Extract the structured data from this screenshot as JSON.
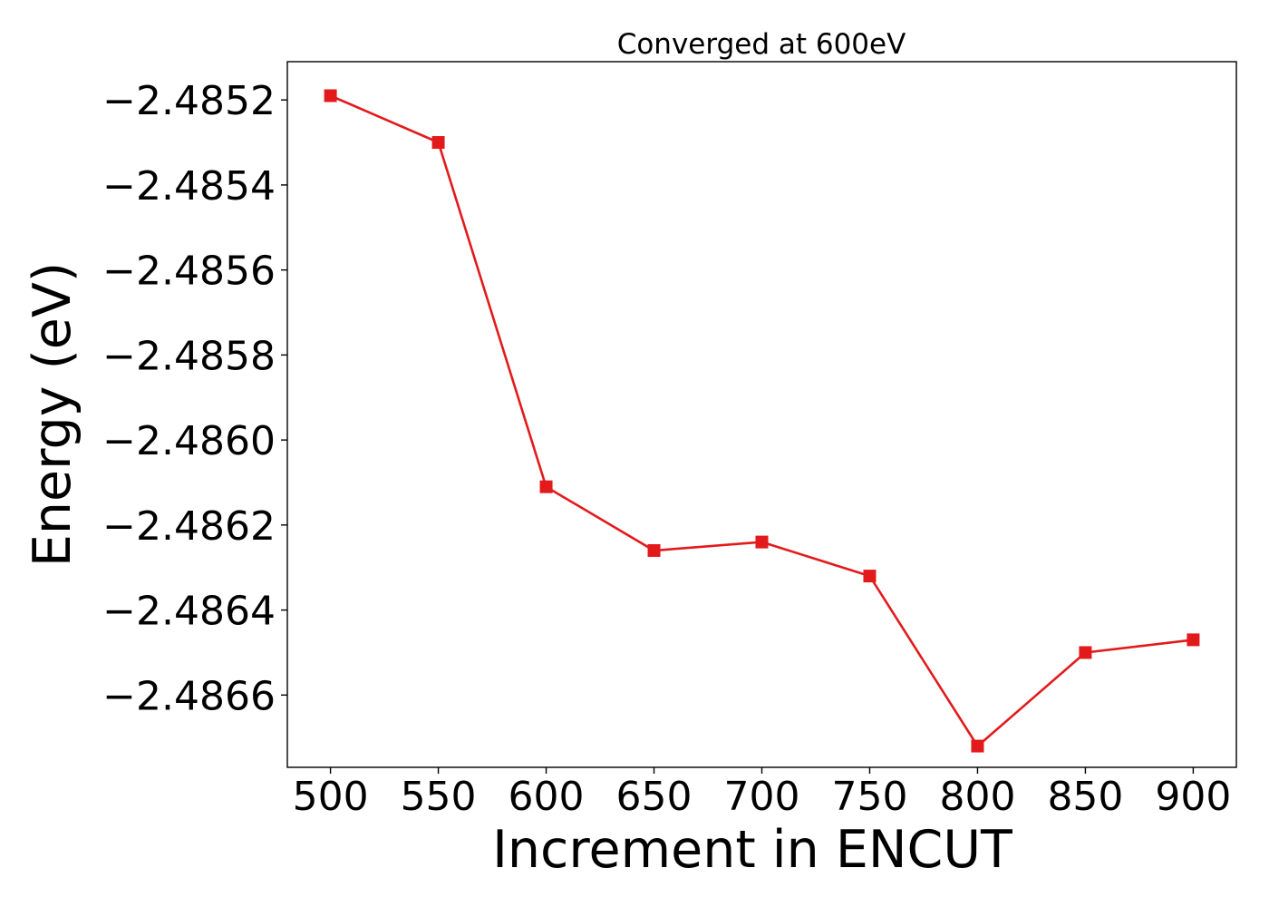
{
  "chart_data": {
    "type": "line",
    "title": "Converged at 600eV",
    "xlabel": "Increment in ENCUT",
    "ylabel": "Energy (eV)",
    "x": [
      500,
      550,
      600,
      650,
      700,
      750,
      800,
      850,
      900
    ],
    "series": [
      {
        "values": [
          -2.48519,
          -2.4853,
          -2.48611,
          -2.48626,
          -2.48624,
          -2.48632,
          -2.48672,
          -2.4865,
          -2.48647
        ],
        "color": "#e31a1c",
        "marker": "square"
      }
    ],
    "xticks": [
      500,
      550,
      600,
      650,
      700,
      750,
      800,
      850,
      900
    ],
    "xtick_labels": [
      "500",
      "550",
      "600",
      "650",
      "700",
      "750",
      "800",
      "850",
      "900"
    ],
    "yticks": [
      -2.4852,
      -2.4854,
      -2.4856,
      -2.4858,
      -2.486,
      -2.4862,
      -2.4864,
      -2.4866
    ],
    "ytick_labels": [
      "−2.4852",
      "−2.4854",
      "−2.4856",
      "−2.4858",
      "−2.4860",
      "−2.4862",
      "−2.4864",
      "−2.4866"
    ],
    "xlim": [
      480,
      920
    ],
    "ylim": [
      -2.48677,
      -2.48511
    ],
    "grid": false,
    "legend": "none"
  }
}
